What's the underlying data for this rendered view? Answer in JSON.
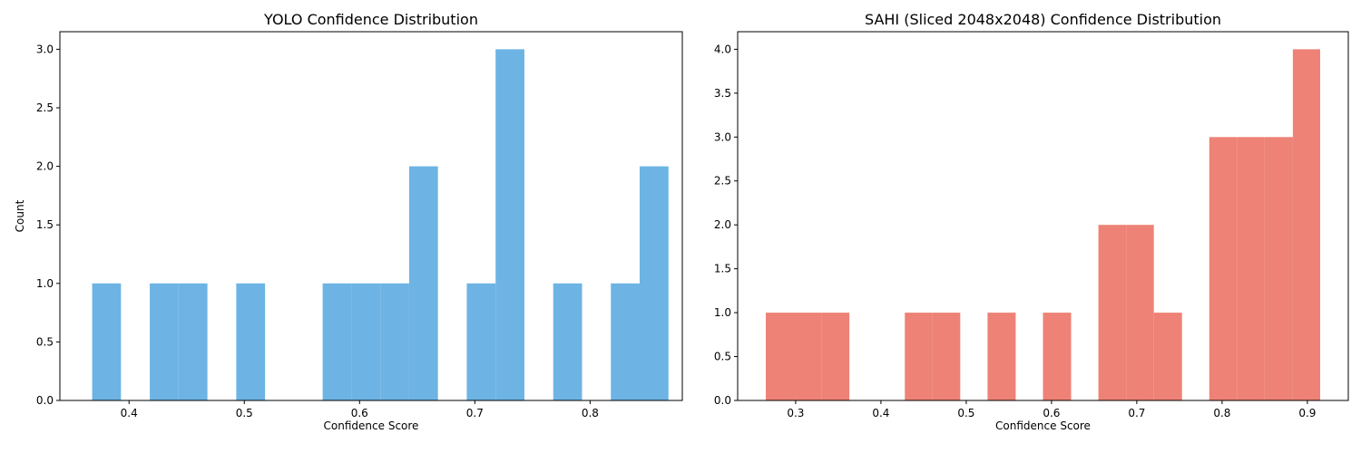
{
  "chart_data": [
    {
      "type": "bar",
      "title": "YOLO Confidence Distribution",
      "xlabel": "Confidence Score",
      "ylabel": "Count",
      "xlim": [
        0.34,
        0.88
      ],
      "ylim": [
        0,
        3.15
      ],
      "xticks": [
        {
          "value": 0.4,
          "label": "0.4"
        },
        {
          "value": 0.5,
          "label": "0.5"
        },
        {
          "value": 0.6,
          "label": "0.6"
        },
        {
          "value": 0.7,
          "label": "0.7"
        },
        {
          "value": 0.8,
          "label": "0.8"
        }
      ],
      "yticks": [
        {
          "value": 0.0,
          "label": "0.0"
        },
        {
          "value": 0.5,
          "label": "0.5"
        },
        {
          "value": 1.0,
          "label": "1.0"
        },
        {
          "value": 1.5,
          "label": "1.5"
        },
        {
          "value": 2.0,
          "label": "2.0"
        },
        {
          "value": 2.5,
          "label": "2.5"
        },
        {
          "value": 3.0,
          "label": "3.0"
        }
      ],
      "bin_edges": [
        0.368,
        0.393,
        0.418,
        0.443,
        0.468,
        0.493,
        0.518,
        0.543,
        0.568,
        0.593,
        0.618,
        0.643,
        0.668,
        0.693,
        0.718,
        0.743,
        0.768,
        0.793,
        0.818,
        0.843,
        0.868
      ],
      "values": [
        1,
        0,
        1,
        1,
        0,
        1,
        0,
        0,
        1,
        1,
        1,
        2,
        0,
        1,
        3,
        0,
        1,
        0,
        1,
        2
      ],
      "color": "#6db4e4",
      "grid": false
    },
    {
      "type": "bar",
      "title": "SAHI (Sliced 2048x2048) Confidence Distribution",
      "xlabel": "Confidence Score",
      "ylabel": "",
      "xlim": [
        0.232,
        0.948
      ],
      "ylim": [
        0,
        4.2
      ],
      "xticks": [
        {
          "value": 0.3,
          "label": "0.3"
        },
        {
          "value": 0.4,
          "label": "0.4"
        },
        {
          "value": 0.5,
          "label": "0.5"
        },
        {
          "value": 0.6,
          "label": "0.6"
        },
        {
          "value": 0.7,
          "label": "0.7"
        },
        {
          "value": 0.8,
          "label": "0.8"
        },
        {
          "value": 0.9,
          "label": "0.9"
        }
      ],
      "yticks": [
        {
          "value": 0.0,
          "label": "0.0"
        },
        {
          "value": 0.5,
          "label": "0.5"
        },
        {
          "value": 1.0,
          "label": "1.0"
        },
        {
          "value": 1.5,
          "label": "1.5"
        },
        {
          "value": 2.0,
          "label": "2.0"
        },
        {
          "value": 2.5,
          "label": "2.5"
        },
        {
          "value": 3.0,
          "label": "3.0"
        },
        {
          "value": 3.5,
          "label": "3.5"
        },
        {
          "value": 4.0,
          "label": "4.0"
        }
      ],
      "bin_edges": [
        0.265,
        0.298,
        0.33,
        0.363,
        0.395,
        0.428,
        0.46,
        0.493,
        0.525,
        0.558,
        0.59,
        0.623,
        0.655,
        0.688,
        0.72,
        0.753,
        0.785,
        0.818,
        0.85,
        0.883,
        0.915
      ],
      "values": [
        1,
        1,
        1,
        0,
        0,
        1,
        1,
        0,
        1,
        0,
        1,
        0,
        2,
        2,
        1,
        0,
        3,
        3,
        3,
        4
      ],
      "color": "#ee8276",
      "grid": false
    }
  ]
}
